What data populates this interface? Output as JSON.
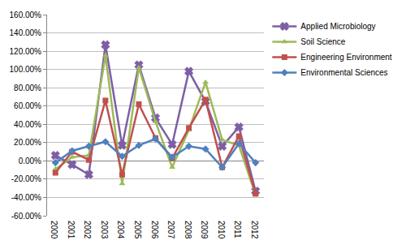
{
  "chart_data": {
    "type": "line",
    "categories": [
      "2000",
      "2001",
      "2002",
      "2003",
      "2004",
      "2005",
      "2006",
      "2007",
      "2008",
      "2009",
      "2010",
      "2011",
      "2012"
    ],
    "series": [
      {
        "name": "Applied Microbiology",
        "color": "#7e5fa6",
        "marker": "x",
        "values": [
          6,
          -4,
          -15,
          127,
          17,
          105,
          47,
          18,
          98,
          65,
          16,
          37,
          -33
        ]
      },
      {
        "name": "Soil Science",
        "color": "#9bbb59",
        "marker": "triangle-up",
        "values": [
          -9,
          4,
          6,
          115,
          -25,
          102,
          43,
          -7,
          34,
          86,
          23,
          17,
          -37
        ]
      },
      {
        "name": "Engineering Environment",
        "color": "#c0504d",
        "marker": "square",
        "values": [
          -13,
          10,
          1,
          66,
          -15,
          62,
          25,
          3,
          36,
          67,
          -7,
          27,
          -36
        ]
      },
      {
        "name": "Environmental Sciences",
        "color": "#4f81bd",
        "marker": "diamond",
        "values": [
          -2,
          11,
          16,
          21,
          5,
          17,
          24,
          4,
          16,
          13,
          -7,
          19,
          -2
        ]
      }
    ],
    "ylim": [
      -60,
      160
    ],
    "yticks": [
      {
        "value": -60,
        "label": "-60.00%"
      },
      {
        "value": -40,
        "label": "-40.00%"
      },
      {
        "value": -20,
        "label": "-20.00%"
      },
      {
        "value": 0,
        "label": "0.00%"
      },
      {
        "value": 20,
        "label": "20.00%"
      },
      {
        "value": 40,
        "label": "40.00%"
      },
      {
        "value": 60,
        "label": "60.00%"
      },
      {
        "value": 80,
        "label": "80.00%"
      },
      {
        "value": 100,
        "label": "100.00%"
      },
      {
        "value": 120,
        "label": "120.00%"
      },
      {
        "value": 140,
        "label": "140.00%"
      },
      {
        "value": 160,
        "label": "160.00%"
      }
    ],
    "grid": true,
    "legend": "right"
  }
}
